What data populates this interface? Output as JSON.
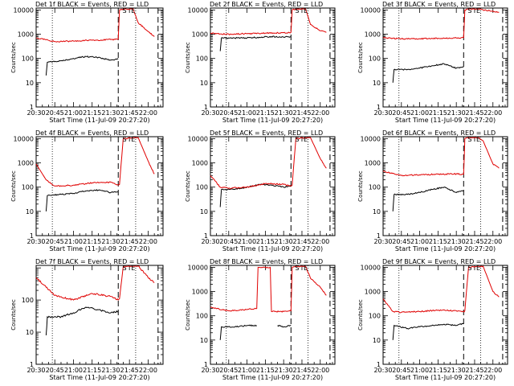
{
  "figure": {
    "xlabel": "Start Time (11-Jul-09 20:27:20)",
    "ylabel": "Counts/sec",
    "colors": {
      "events": "#000000",
      "lld": "#e00000",
      "axis": "#000000",
      "background": "#ffffff"
    }
  },
  "chart_data": [
    {
      "type": "line",
      "title": "Det 1f BLACK = Events, RED = LLD",
      "x_ticks": [
        "20:30",
        "20:45",
        "21:00",
        "21:15",
        "21:30",
        "21:45",
        "22:00"
      ],
      "y_ticks": [
        "1",
        "10",
        "100",
        "1000",
        "10000"
      ],
      "ylim": [
        1,
        12000
      ],
      "yscale": "log",
      "markers": [
        "S",
        "E"
      ],
      "series": [
        {
          "name": "BLACK = Events",
          "color": "#000000",
          "x": [
            "20:38",
            "20:39",
            "20:50",
            "21:00",
            "21:10",
            "21:20",
            "21:30",
            "21:36"
          ],
          "y": [
            20,
            70,
            80,
            100,
            120,
            110,
            85,
            95
          ]
        },
        {
          "name": "RED = LLD",
          "color": "#e00000",
          "x": [
            "20:30",
            "20:45",
            "21:00",
            "21:15",
            "21:30",
            "21:36",
            "21:37",
            "21:40",
            "21:48",
            "21:52",
            "22:00",
            "22:05"
          ],
          "y": [
            700,
            500,
            520,
            560,
            600,
            620,
            10000,
            11000,
            11000,
            3000,
            1300,
            800
          ]
        }
      ]
    },
    {
      "type": "line",
      "title": "Det 2f BLACK = Events, RED = LLD",
      "x_ticks": [
        "20:30",
        "20:45",
        "21:00",
        "21:15",
        "21:30",
        "21:45",
        "22:00"
      ],
      "y_ticks": [
        "1",
        "10",
        "100",
        "1000",
        "10000"
      ],
      "ylim": [
        1,
        12000
      ],
      "yscale": "log",
      "markers": [
        "S",
        "E"
      ],
      "series": [
        {
          "name": "BLACK = Events",
          "color": "#000000",
          "x": [
            "20:38",
            "20:39",
            "20:50",
            "21:00",
            "21:10",
            "21:20",
            "21:30",
            "21:36"
          ],
          "y": [
            200,
            700,
            700,
            700,
            750,
            800,
            750,
            800
          ]
        },
        {
          "name": "RED = LLD",
          "color": "#e00000",
          "x": [
            "20:30",
            "20:45",
            "21:00",
            "21:15",
            "21:30",
            "21:36",
            "21:37",
            "21:40",
            "21:48",
            "21:52",
            "22:00",
            "22:05"
          ],
          "y": [
            1100,
            1000,
            1050,
            1100,
            1150,
            1200,
            10000,
            11000,
            11000,
            2500,
            1400,
            1200
          ]
        }
      ]
    },
    {
      "type": "line",
      "title": "Det 3f BLACK = Events, RED = LLD",
      "x_ticks": [
        "20:30",
        "20:45",
        "21:00",
        "21:15",
        "21:30",
        "21:45",
        "22:00"
      ],
      "y_ticks": [
        "1",
        "10",
        "100",
        "1000",
        "10000"
      ],
      "ylim": [
        1,
        12000
      ],
      "yscale": "log",
      "markers": [
        "S",
        "E"
      ],
      "series": [
        {
          "name": "BLACK = Events",
          "color": "#000000",
          "x": [
            "20:38",
            "20:39",
            "20:50",
            "21:00",
            "21:10",
            "21:20",
            "21:30",
            "21:36"
          ],
          "y": [
            10,
            35,
            35,
            40,
            50,
            60,
            40,
            45
          ]
        },
        {
          "name": "RED = LLD",
          "color": "#e00000",
          "x": [
            "20:30",
            "20:45",
            "21:00",
            "21:15",
            "21:30",
            "21:36",
            "21:37",
            "21:40",
            "21:48",
            "21:52",
            "22:00",
            "22:05"
          ],
          "y": [
            700,
            650,
            650,
            680,
            700,
            720,
            10000,
            11000,
            11000,
            10000,
            9000,
            8000
          ]
        }
      ]
    },
    {
      "type": "line",
      "title": "Det 4f BLACK = Events, RED = LLD",
      "x_ticks": [
        "20:30",
        "20:45",
        "21:00",
        "21:15",
        "21:30",
        "21:45",
        "22:00"
      ],
      "y_ticks": [
        "1",
        "10",
        "100",
        "1000",
        "10000"
      ],
      "ylim": [
        1,
        12000
      ],
      "yscale": "log",
      "markers": [
        "S",
        "E"
      ],
      "series": [
        {
          "name": "BLACK = Events",
          "color": "#000000",
          "x": [
            "20:38",
            "20:39",
            "20:50",
            "21:00",
            "21:10",
            "21:20",
            "21:30",
            "21:36"
          ],
          "y": [
            10,
            45,
            50,
            55,
            70,
            75,
            60,
            65
          ]
        },
        {
          "name": "RED = LLD",
          "color": "#e00000",
          "x": [
            "20:30",
            "20:38",
            "20:45",
            "21:00",
            "21:15",
            "21:30",
            "21:36",
            "21:37",
            "21:40",
            "21:48",
            "21:52",
            "22:00",
            "22:05"
          ],
          "y": [
            900,
            200,
            110,
            120,
            150,
            160,
            120,
            130,
            10000,
            11000,
            11000,
            1200,
            350
          ]
        }
      ]
    },
    {
      "type": "line",
      "title": "Det 5f BLACK = Events, RED = LLD",
      "x_ticks": [
        "20:30",
        "20:45",
        "21:00",
        "21:15",
        "21:30",
        "21:45",
        "22:00"
      ],
      "y_ticks": [
        "1",
        "10",
        "100",
        "1000",
        "10000"
      ],
      "ylim": [
        1,
        12000
      ],
      "yscale": "log",
      "markers": [
        "S",
        "E"
      ],
      "series": [
        {
          "name": "BLACK = Events",
          "color": "#000000",
          "x": [
            "20:38",
            "20:39",
            "20:50",
            "21:00",
            "21:10",
            "21:20",
            "21:30",
            "21:36"
          ],
          "y": [
            15,
            80,
            80,
            100,
            130,
            120,
            100,
            110
          ]
        },
        {
          "name": "RED = LLD",
          "color": "#e00000",
          "x": [
            "20:30",
            "20:38",
            "20:45",
            "21:00",
            "21:15",
            "21:30",
            "21:36",
            "21:37",
            "21:40",
            "21:48",
            "21:52",
            "22:00",
            "22:05"
          ],
          "y": [
            300,
            100,
            90,
            100,
            140,
            130,
            110,
            120,
            10000,
            11000,
            11000,
            1500,
            600
          ]
        }
      ]
    },
    {
      "type": "line",
      "title": "Det 6f BLACK = Events, RED = LLD",
      "x_ticks": [
        "20:30",
        "20:45",
        "21:00",
        "21:15",
        "21:30",
        "21:45",
        "22:00"
      ],
      "y_ticks": [
        "1",
        "10",
        "100",
        "1000",
        "10000"
      ],
      "ylim": [
        1,
        12000
      ],
      "yscale": "log",
      "markers": [
        "S",
        "E"
      ],
      "series": [
        {
          "name": "BLACK = Events",
          "color": "#000000",
          "x": [
            "20:38",
            "20:39",
            "20:50",
            "21:00",
            "21:10",
            "21:20",
            "21:30",
            "21:36"
          ],
          "y": [
            10,
            50,
            50,
            60,
            80,
            100,
            60,
            70
          ]
        },
        {
          "name": "RED = LLD",
          "color": "#e00000",
          "x": [
            "20:30",
            "20:45",
            "21:00",
            "21:15",
            "21:30",
            "21:36",
            "21:37",
            "21:40",
            "21:48",
            "21:52",
            "22:00",
            "22:05"
          ],
          "y": [
            450,
            300,
            320,
            340,
            350,
            340,
            10000,
            11000,
            11000,
            8000,
            900,
            600
          ]
        }
      ]
    },
    {
      "type": "line",
      "title": "Det 7f BLACK = Events, RED = LLD",
      "x_ticks": [
        "20:30",
        "20:45",
        "21:00",
        "21:15",
        "21:30",
        "21:45",
        "22:00"
      ],
      "y_ticks": [
        "1",
        "10",
        "100"
      ],
      "ylim": [
        1,
        1200
      ],
      "yscale": "log",
      "markers": [
        "S",
        "E"
      ],
      "series": [
        {
          "name": "BLACK = Events",
          "color": "#000000",
          "x": [
            "20:38",
            "20:39",
            "20:50",
            "21:00",
            "21:10",
            "21:20",
            "21:30",
            "21:36"
          ],
          "y": [
            8,
            30,
            30,
            40,
            60,
            50,
            40,
            45
          ]
        },
        {
          "name": "RED = LLD",
          "color": "#e00000",
          "x": [
            "20:30",
            "20:38",
            "20:45",
            "21:00",
            "21:15",
            "21:30",
            "21:36",
            "21:37",
            "21:40",
            "21:48",
            "21:52",
            "22:00",
            "22:05"
          ],
          "y": [
            500,
            250,
            140,
            100,
            160,
            130,
            100,
            110,
            1100,
            1150,
            1150,
            500,
            350
          ]
        }
      ]
    },
    {
      "type": "line",
      "title": "Det 8f BLACK = Events, RED = LLD",
      "x_ticks": [
        "20:30",
        "20:45",
        "21:00",
        "21:15",
        "21:30",
        "21:45",
        "22:00"
      ],
      "y_ticks": [
        "1",
        "10",
        "100",
        "1000",
        "10000"
      ],
      "ylim": [
        1,
        12000
      ],
      "yscale": "log",
      "markers": [
        "S",
        "E"
      ],
      "series": [
        {
          "name": "BLACK = Events",
          "color": "#000000",
          "x": [
            "20:38",
            "20:39",
            "20:50",
            "21:00",
            "21:08",
            "21:10",
            "21:21",
            "21:25",
            "21:30",
            "21:36"
          ],
          "y": [
            10,
            35,
            35,
            40,
            40,
            null,
            null,
            40,
            35,
            40
          ]
        },
        {
          "name": "RED = LLD",
          "color": "#e00000",
          "x": [
            "20:30",
            "20:45",
            "21:00",
            "21:08",
            "21:09",
            "21:15",
            "21:19",
            "21:20",
            "21:30",
            "21:36",
            "21:37",
            "21:40",
            "21:48",
            "21:52",
            "22:00",
            "22:05"
          ],
          "y": [
            220,
            160,
            180,
            200,
            10000,
            10000,
            10000,
            150,
            150,
            160,
            10000,
            11000,
            11000,
            3500,
            1500,
            700
          ]
        }
      ]
    },
    {
      "type": "line",
      "title": "Det 9f BLACK = Events, RED = LLD",
      "x_ticks": [
        "20:30",
        "20:45",
        "21:00",
        "21:15",
        "21:30",
        "21:45",
        "22:00"
      ],
      "y_ticks": [
        "1",
        "10",
        "100",
        "1000",
        "10000"
      ],
      "ylim": [
        1,
        12000
      ],
      "yscale": "log",
      "markers": [
        "S",
        "E"
      ],
      "series": [
        {
          "name": "BLACK = Events",
          "color": "#000000",
          "x": [
            "20:38",
            "20:39",
            "20:50",
            "21:00",
            "21:10",
            "21:20",
            "21:30",
            "21:36"
          ],
          "y": [
            10,
            40,
            30,
            35,
            40,
            45,
            40,
            50
          ]
        },
        {
          "name": "RED = LLD",
          "color": "#e00000",
          "x": [
            "20:30",
            "20:38",
            "20:45",
            "21:00",
            "21:15",
            "21:30",
            "21:36",
            "21:37",
            "21:40",
            "21:48",
            "21:52",
            "22:00",
            "22:05"
          ],
          "y": [
            500,
            150,
            140,
            150,
            170,
            160,
            150,
            160,
            10000,
            11000,
            11000,
            1000,
            600
          ]
        }
      ]
    }
  ]
}
